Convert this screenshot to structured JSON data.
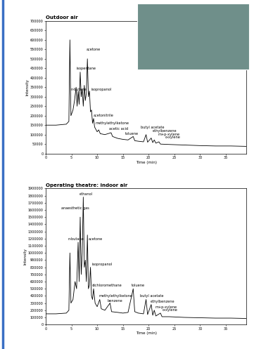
{
  "chart_data": [
    {
      "type": "line",
      "title": "Outdoor air",
      "x_label": "Time (min)",
      "y_label": "Intensity",
      "x": [
        0,
        2,
        4,
        4.5,
        4.7,
        4.9,
        5.3,
        5.6,
        5.9,
        6.1,
        6.3,
        6.5,
        6.7,
        6.9,
        7.1,
        7.3,
        7.5,
        7.7,
        7.9,
        8.1,
        8.3,
        8.5,
        8.7,
        8.9,
        9.1,
        9.3,
        9.5,
        10.0,
        10.3,
        10.6,
        11.5,
        12.7,
        13.0,
        14,
        15,
        16,
        17,
        17.3,
        18,
        19,
        19.5,
        19.8,
        20.5,
        20.8,
        21.1,
        21.4,
        22.0,
        22.3,
        24,
        27,
        30,
        33,
        36,
        39
      ],
      "values": [
        150000,
        150000,
        155000,
        170000,
        600000,
        200000,
        230000,
        280000,
        350000,
        250000,
        330000,
        260000,
        430000,
        300000,
        340000,
        250000,
        360000,
        280000,
        320000,
        500000,
        300000,
        330000,
        220000,
        230000,
        160000,
        185000,
        140000,
        115000,
        125000,
        105000,
        100000,
        110000,
        90000,
        80000,
        75000,
        72000,
        90000,
        68000,
        65000,
        62000,
        100000,
        60000,
        82000,
        58000,
        72000,
        55000,
        62000,
        50000,
        48000,
        45000,
        42000,
        40000,
        40000,
        38000
      ],
      "color": "#000000",
      "xlim": [
        0,
        39
      ],
      "xticks": [
        0,
        5,
        10,
        15,
        20,
        25,
        30,
        35
      ],
      "ylim": [
        0,
        700000
      ],
      "yticks": [
        0,
        50000,
        100000,
        150000,
        200000,
        250000,
        300000,
        350000,
        400000,
        450000,
        500000,
        550000,
        600000,
        650000,
        700000
      ],
      "annotations": [
        {
          "text": "n-butane",
          "x": 4.8,
          "y": 330000
        },
        {
          "text": "isopentane",
          "x": 6.0,
          "y": 440000
        },
        {
          "text": "acetone",
          "x": 7.9,
          "y": 540000
        },
        {
          "text": "isopropanol",
          "x": 8.8,
          "y": 330000
        },
        {
          "text": "acetonitrile",
          "x": 9.2,
          "y": 190000
        },
        {
          "text": "methylethylketone",
          "x": 9.6,
          "y": 150000
        },
        {
          "text": "acetic acid",
          "x": 12.3,
          "y": 120000
        },
        {
          "text": "toluene",
          "x": 15.5,
          "y": 95000
        },
        {
          "text": "butyl acetate",
          "x": 18.5,
          "y": 130000
        },
        {
          "text": "ethylbenzene",
          "x": 20.8,
          "y": 110000
        },
        {
          "text": "m+p-xylene",
          "x": 21.8,
          "y": 90000
        },
        {
          "text": "o-xylene",
          "x": 23.2,
          "y": 75000
        }
      ]
    },
    {
      "type": "line",
      "title": "Operating theatre: indoor air",
      "x_label": "Time (min)",
      "y_label": "Intensity",
      "x": [
        0,
        2,
        4,
        4.5,
        4.7,
        4.9,
        5.3,
        5.7,
        6.0,
        6.3,
        6.5,
        6.7,
        6.9,
        7.1,
        7.3,
        7.5,
        7.7,
        7.9,
        8.1,
        8.3,
        8.5,
        8.7,
        8.9,
        9.1,
        9.3,
        9.6,
        10.0,
        10.5,
        10.8,
        11.5,
        12.5,
        12.8,
        14,
        15,
        16,
        17,
        17.3,
        18,
        19,
        19.5,
        19.8,
        20.5,
        20.8,
        21.1,
        21.4,
        22.3,
        22.6,
        24,
        27,
        30,
        33,
        36,
        39
      ],
      "values": [
        150000,
        150000,
        160000,
        200000,
        1000000,
        300000,
        350000,
        600000,
        500000,
        1150000,
        600000,
        1500000,
        700000,
        1000000,
        1780000,
        800000,
        900000,
        600000,
        1250000,
        500000,
        550000,
        800000,
        400000,
        350000,
        500000,
        300000,
        250000,
        350000,
        220000,
        200000,
        300000,
        180000,
        170000,
        160000,
        170000,
        500000,
        180000,
        160000,
        150000,
        350000,
        140000,
        280000,
        130000,
        200000,
        120000,
        160000,
        110000,
        110000,
        100000,
        95000,
        90000,
        90000,
        85000
      ],
      "color": "#000000",
      "xlim": [
        0,
        39
      ],
      "xticks": [
        0,
        5,
        10,
        15,
        20,
        25,
        30,
        35
      ],
      "ylim": [
        0,
        1900000
      ],
      "yticks": [
        0,
        100000,
        200000,
        300000,
        400000,
        500000,
        600000,
        700000,
        800000,
        900000,
        1000000,
        1100000,
        1200000,
        1300000,
        1400000,
        1500000,
        1600000,
        1700000,
        1800000,
        1900000
      ],
      "annotations": [
        {
          "text": "anaesthetic gas",
          "x": 3.0,
          "y": 1600000
        },
        {
          "text": "ethanol",
          "x": 6.6,
          "y": 1800000
        },
        {
          "text": "n-butane",
          "x": 4.3,
          "y": 1170000
        },
        {
          "text": "acetone",
          "x": 8.3,
          "y": 1170000
        },
        {
          "text": "isopropanol",
          "x": 8.9,
          "y": 820000
        },
        {
          "text": "dichloromethane",
          "x": 9.0,
          "y": 520000
        },
        {
          "text": "methylethylketone",
          "x": 10.3,
          "y": 370000
        },
        {
          "text": "benzene",
          "x": 12.0,
          "y": 310000
        },
        {
          "text": "toluene",
          "x": 16.6,
          "y": 520000
        },
        {
          "text": "butyl acetate",
          "x": 18.3,
          "y": 370000
        },
        {
          "text": "ethylbenzene",
          "x": 20.3,
          "y": 300000
        },
        {
          "text": "m+p-xylene",
          "x": 21.2,
          "y": 220000
        },
        {
          "text": "o-xylene",
          "x": 22.7,
          "y": 175000
        }
      ]
    }
  ]
}
